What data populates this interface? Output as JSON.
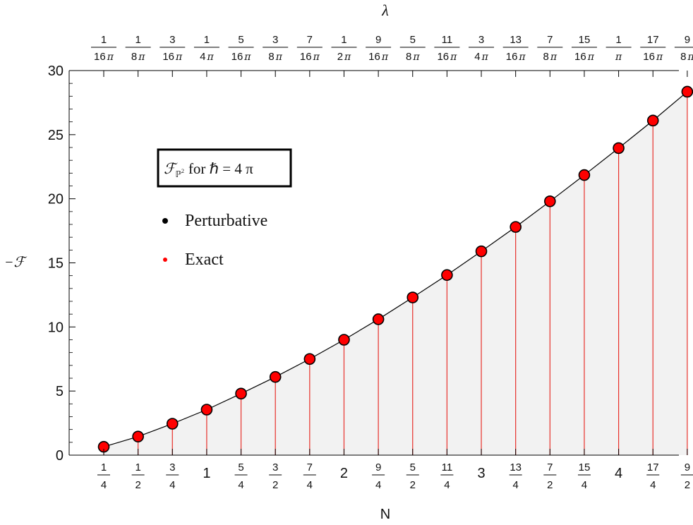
{
  "chart_data": {
    "type": "scatter",
    "xlabel": "N",
    "ylabel": "−ℱ",
    "top_axis_label": "λ",
    "ylim": [
      0,
      30
    ],
    "xlim": [
      0.2,
      4.5
    ],
    "y_ticks": [
      "0",
      "5",
      "10",
      "15",
      "20",
      "25",
      "30"
    ],
    "x": [
      0.25,
      0.5,
      0.75,
      1,
      1.25,
      1.5,
      1.75,
      2,
      2.25,
      2.5,
      2.75,
      3,
      3.25,
      3.5,
      3.75,
      4,
      4.25,
      4.5
    ],
    "x_tick_labels": [
      {
        "num": "1",
        "den": "4"
      },
      {
        "num": "1",
        "den": "2"
      },
      {
        "num": "3",
        "den": "4"
      },
      {
        "whole": "1"
      },
      {
        "num": "5",
        "den": "4"
      },
      {
        "num": "3",
        "den": "2"
      },
      {
        "num": "7",
        "den": "4"
      },
      {
        "whole": "2"
      },
      {
        "num": "9",
        "den": "4"
      },
      {
        "num": "5",
        "den": "2"
      },
      {
        "num": "11",
        "den": "4"
      },
      {
        "whole": "3"
      },
      {
        "num": "13",
        "den": "4"
      },
      {
        "num": "7",
        "den": "2"
      },
      {
        "num": "15",
        "den": "4"
      },
      {
        "whole": "4"
      },
      {
        "num": "17",
        "den": "4"
      },
      {
        "num": "9",
        "den": "2"
      }
    ],
    "top_tick_labels": [
      {
        "num": "1",
        "den": "16"
      },
      {
        "num": "1",
        "den": "8"
      },
      {
        "num": "3",
        "den": "16"
      },
      {
        "num": "1",
        "den": "4"
      },
      {
        "num": "5",
        "den": "16"
      },
      {
        "num": "3",
        "den": "8"
      },
      {
        "num": "7",
        "den": "16"
      },
      {
        "num": "1",
        "den": "2"
      },
      {
        "num": "9",
        "den": "16"
      },
      {
        "num": "5",
        "den": "8"
      },
      {
        "num": "11",
        "den": "16"
      },
      {
        "num": "3",
        "den": "4"
      },
      {
        "num": "13",
        "den": "16"
      },
      {
        "num": "7",
        "den": "8"
      },
      {
        "num": "15",
        "den": "16"
      },
      {
        "num": "1",
        "den": ""
      },
      {
        "num": "17",
        "den": "16"
      },
      {
        "num": "9",
        "den": "8"
      }
    ],
    "pi_symbol": "π",
    "series": [
      {
        "name": "Perturbative",
        "color": "#000000",
        "values": [
          0.65,
          1.45,
          2.45,
          3.55,
          4.8,
          6.1,
          7.5,
          9.0,
          10.6,
          12.3,
          14.05,
          15.9,
          17.8,
          19.8,
          21.85,
          23.95,
          26.1,
          28.35
        ]
      },
      {
        "name": "Exact",
        "color": "#ff0000",
        "values": [
          0.65,
          1.45,
          2.45,
          3.55,
          4.8,
          6.1,
          7.5,
          9.0,
          10.6,
          12.3,
          14.05,
          15.9,
          17.8,
          19.8,
          21.85,
          23.95,
          26.1,
          28.35
        ]
      }
    ],
    "legend_title": {
      "script_f": "ℱ",
      "subscript": "ℙ",
      "superscript": "2",
      "text": "for ℏ = 4 π"
    },
    "legend_position": "upper-left",
    "colors": {
      "fill": "#f2f2f2",
      "marker_fill": "#ff0000",
      "stem": "#e8302a",
      "line": "#000000"
    }
  }
}
